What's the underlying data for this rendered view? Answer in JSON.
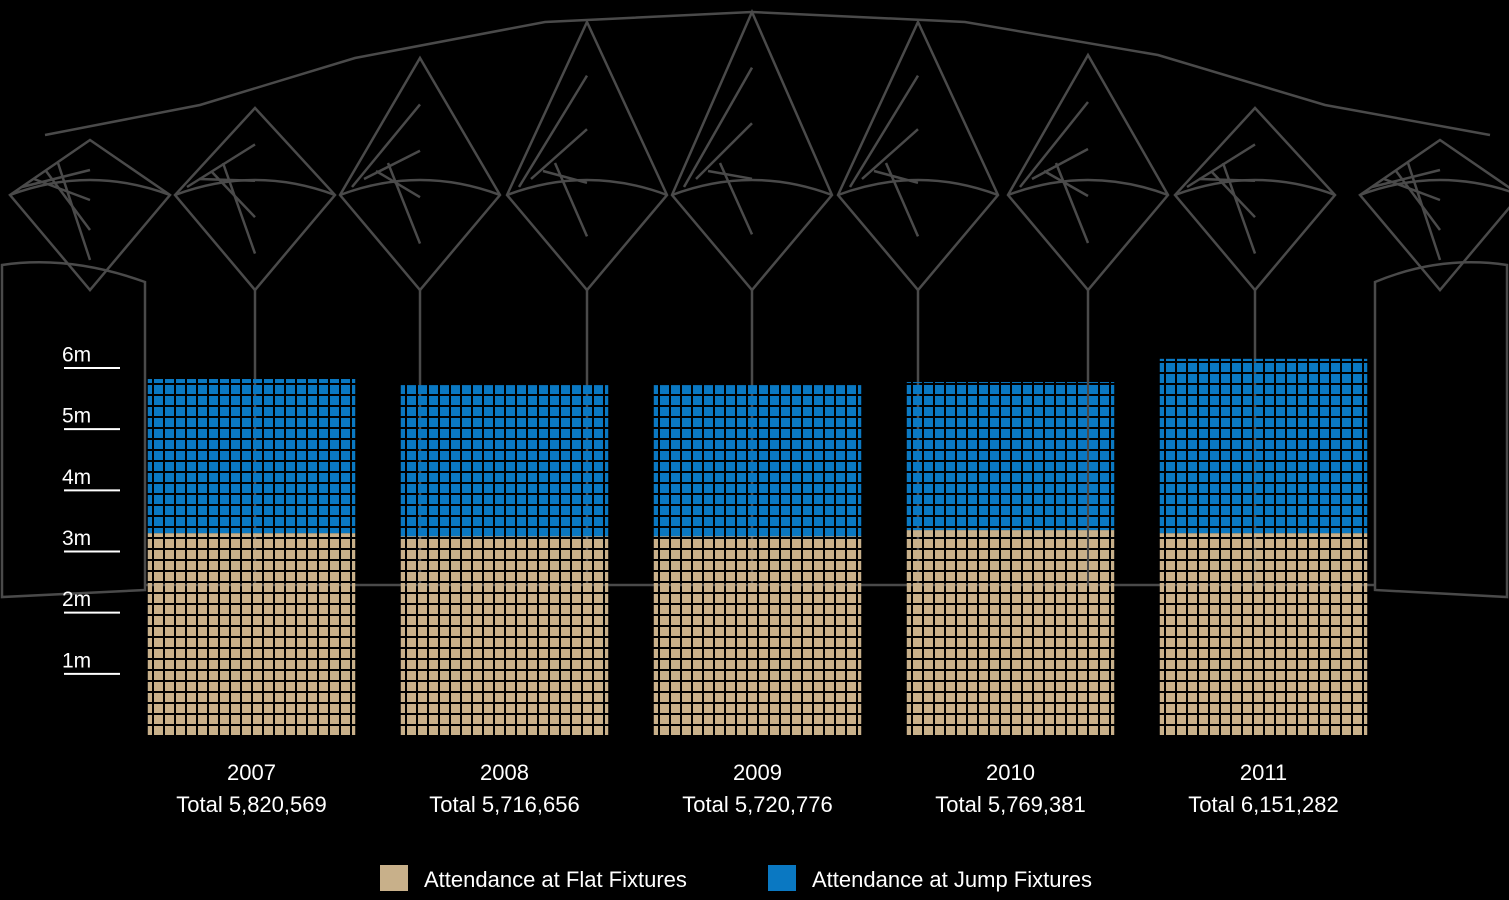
{
  "chart_data": {
    "type": "bar",
    "stacked": true,
    "categories": [
      "2007",
      "2008",
      "2009",
      "2010",
      "2011"
    ],
    "totals": [
      "Total 5,820,569",
      "Total 5,716,656",
      "Total 5,720,776",
      "Total 5,769,381",
      "Total 6,151,282"
    ],
    "series": [
      {
        "name": "Attendance at Flat Fixtures",
        "color": "#c8b08a",
        "values": [
          3300000,
          3250000,
          3250000,
          3350000,
          3300000
        ]
      },
      {
        "name": "Attendance at Jump Fixtures",
        "color": "#0a78c2",
        "values": [
          2520000,
          2470000,
          2470000,
          2420000,
          2850000
        ]
      }
    ],
    "ylim": [
      0,
      6500000
    ],
    "yticks": [
      {
        "value": 1000000,
        "label": "1m"
      },
      {
        "value": 2000000,
        "label": "2m"
      },
      {
        "value": 3000000,
        "label": "3m"
      },
      {
        "value": 4000000,
        "label": "4m"
      },
      {
        "value": 5000000,
        "label": "5m"
      },
      {
        "value": 6000000,
        "label": "6m"
      }
    ]
  }
}
